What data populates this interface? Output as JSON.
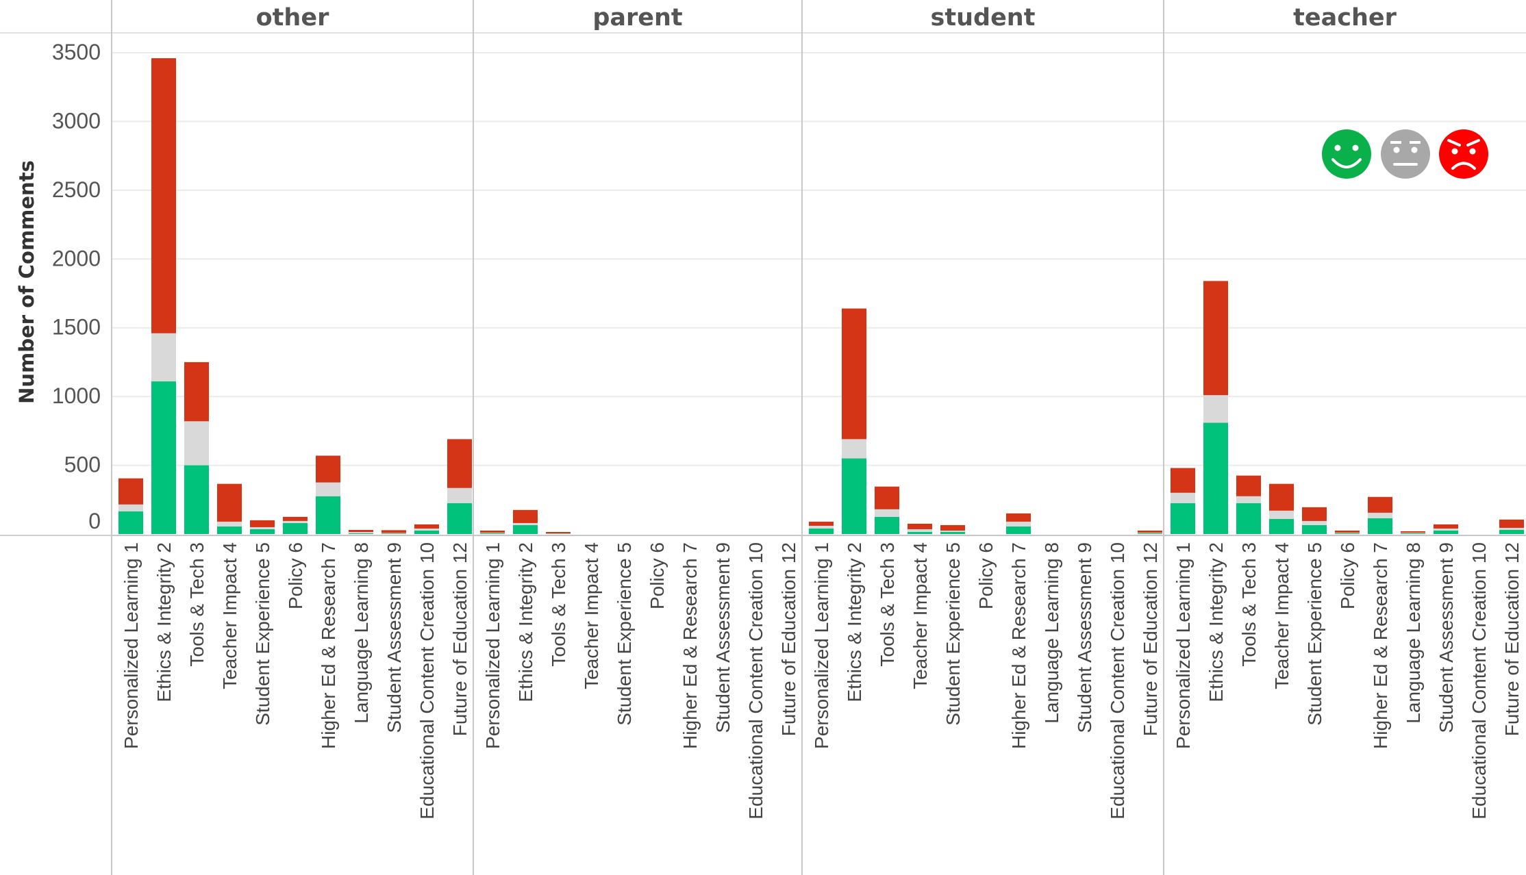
{
  "chart_data": {
    "type": "bar",
    "stacked": true,
    "title": "",
    "ylabel": "Number of Comments",
    "xlabel": "",
    "ylim": [
      0,
      3500
    ],
    "yticks": [
      0,
      500,
      1000,
      1500,
      2000,
      2500,
      3000,
      3500
    ],
    "grid": true,
    "legend": {
      "placement": "top-right",
      "items": [
        {
          "name": "positive",
          "icon": "smiley-face-icon",
          "color": "#0ab04a"
        },
        {
          "name": "neutral",
          "icon": "neutral-face-icon",
          "color": "#a8a8a8"
        },
        {
          "name": "negative",
          "icon": "angry-face-icon",
          "color": "#ff0000"
        }
      ]
    },
    "series_colors": {
      "positive": "#00c27a",
      "neutral": "#d9d9d9",
      "negative": "#d43516"
    },
    "facets": [
      {
        "name": "other",
        "categories": [
          "Personalized Learning 1",
          "Ethics & Integrity 2",
          "Tools & Tech 3",
          "Teacher Impact 4",
          "Student Experience 5",
          "Policy 6",
          "Higher Ed & Research 7",
          "Language Learning 8",
          "Student Assessment 9",
          "Educational Content Creation 10",
          "Future of Education 12"
        ],
        "series": [
          {
            "name": "positive",
            "values": [
              165,
              1110,
              500,
              55,
              35,
              80,
              275,
              5,
              3,
              25,
              225
            ]
          },
          {
            "name": "neutral",
            "values": [
              50,
              350,
              320,
              35,
              15,
              15,
              100,
              10,
              5,
              15,
              110
            ]
          },
          {
            "name": "negative",
            "values": [
              190,
              2000,
              430,
              275,
              50,
              30,
              195,
              15,
              20,
              30,
              355
            ]
          }
        ]
      },
      {
        "name": "parent",
        "categories": [
          "Personalized Learning 1",
          "Ethics & Integrity 2",
          "Tools & Tech 3",
          "Teacher Impact 4",
          "Student Experience 5",
          "Policy 6",
          "Higher Ed & Research 7",
          "Student Assessment 9",
          "Educational Content Creation 10",
          "Future of Education 12"
        ],
        "series": [
          {
            "name": "positive",
            "values": [
              5,
              65,
              2,
              0,
              0,
              0,
              0,
              0,
              0,
              0
            ]
          },
          {
            "name": "neutral",
            "values": [
              5,
              15,
              3,
              0,
              0,
              0,
              0,
              0,
              0,
              0
            ]
          },
          {
            "name": "negative",
            "values": [
              15,
              95,
              10,
              0,
              0,
              0,
              0,
              0,
              0,
              0
            ]
          }
        ]
      },
      {
        "name": "student",
        "categories": [
          "Personalized Learning 1",
          "Ethics & Integrity 2",
          "Tools & Tech 3",
          "Teacher Impact 4",
          "Student Experience 5",
          "Policy 6",
          "Higher Ed & Research 7",
          "Language Learning 8",
          "Student Assessment 9",
          "Educational Content Creation 10",
          "Future of Education 12"
        ],
        "series": [
          {
            "name": "positive",
            "values": [
              40,
              550,
              125,
              15,
              15,
              0,
              55,
              0,
              0,
              0,
              5
            ]
          },
          {
            "name": "neutral",
            "values": [
              20,
              140,
              55,
              20,
              10,
              0,
              35,
              0,
              0,
              0,
              5
            ]
          },
          {
            "name": "negative",
            "values": [
              30,
              950,
              165,
              40,
              40,
              0,
              60,
              0,
              0,
              0,
              15
            ]
          }
        ]
      },
      {
        "name": "teacher",
        "categories": [
          "Personalized Learning 1",
          "Ethics & Integrity 2",
          "Tools & Tech 3",
          "Teacher Impact 4",
          "Student Experience 5",
          "Policy 6",
          "Higher Ed & Research 7",
          "Language Learning 8",
          "Student Assessment 9",
          "Educational Content Creation 10",
          "Future of Education 12"
        ],
        "series": [
          {
            "name": "positive",
            "values": [
              225,
              810,
              225,
              110,
              65,
              5,
              115,
              5,
              25,
              0,
              30
            ]
          },
          {
            "name": "neutral",
            "values": [
              75,
              200,
              50,
              60,
              30,
              5,
              40,
              5,
              15,
              0,
              15
            ]
          },
          {
            "name": "negative",
            "values": [
              180,
              830,
              150,
              195,
              100,
              15,
              115,
              10,
              30,
              0,
              60
            ]
          }
        ]
      }
    ]
  }
}
